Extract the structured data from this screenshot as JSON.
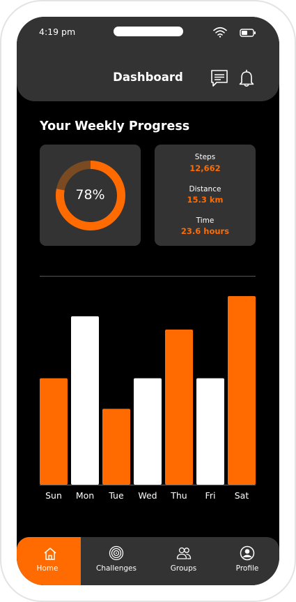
{
  "status_bar": {
    "time": "4:19 pm"
  },
  "header": {
    "title": "Dashboard"
  },
  "progress": {
    "title": "Your Weekly Progress",
    "percent_label": "78%",
    "percent": 0.78,
    "stats": [
      {
        "label": "Steps",
        "value": "12,662"
      },
      {
        "label": "Distance",
        "value": "15.3 km"
      },
      {
        "label": "Time",
        "value": "23.6 hours"
      }
    ]
  },
  "colors": {
    "accent": "#ff6b00",
    "card": "#333333",
    "background": "#000000",
    "bar_alt": "#ffffff"
  },
  "chart_data": {
    "type": "bar",
    "categories": [
      "Sun",
      "Mon",
      "Tue",
      "Wed",
      "Thu",
      "Fri",
      "Sat"
    ],
    "values": [
      153,
      242,
      109,
      153,
      223,
      153,
      271
    ],
    "bar_colors": [
      "#ff6b00",
      "#ffffff",
      "#ff6b00",
      "#ffffff",
      "#ff6b00",
      "#ffffff",
      "#ff6b00"
    ],
    "ylim": [
      0,
      271
    ],
    "title": "",
    "xlabel": "",
    "ylabel": ""
  },
  "tabs": [
    {
      "label": "Home",
      "icon": "home-icon",
      "active": true
    },
    {
      "label": "Challenges",
      "icon": "target-icon",
      "active": false
    },
    {
      "label": "Groups",
      "icon": "groups-icon",
      "active": false
    },
    {
      "label": "Profile",
      "icon": "profile-icon",
      "active": false
    }
  ]
}
